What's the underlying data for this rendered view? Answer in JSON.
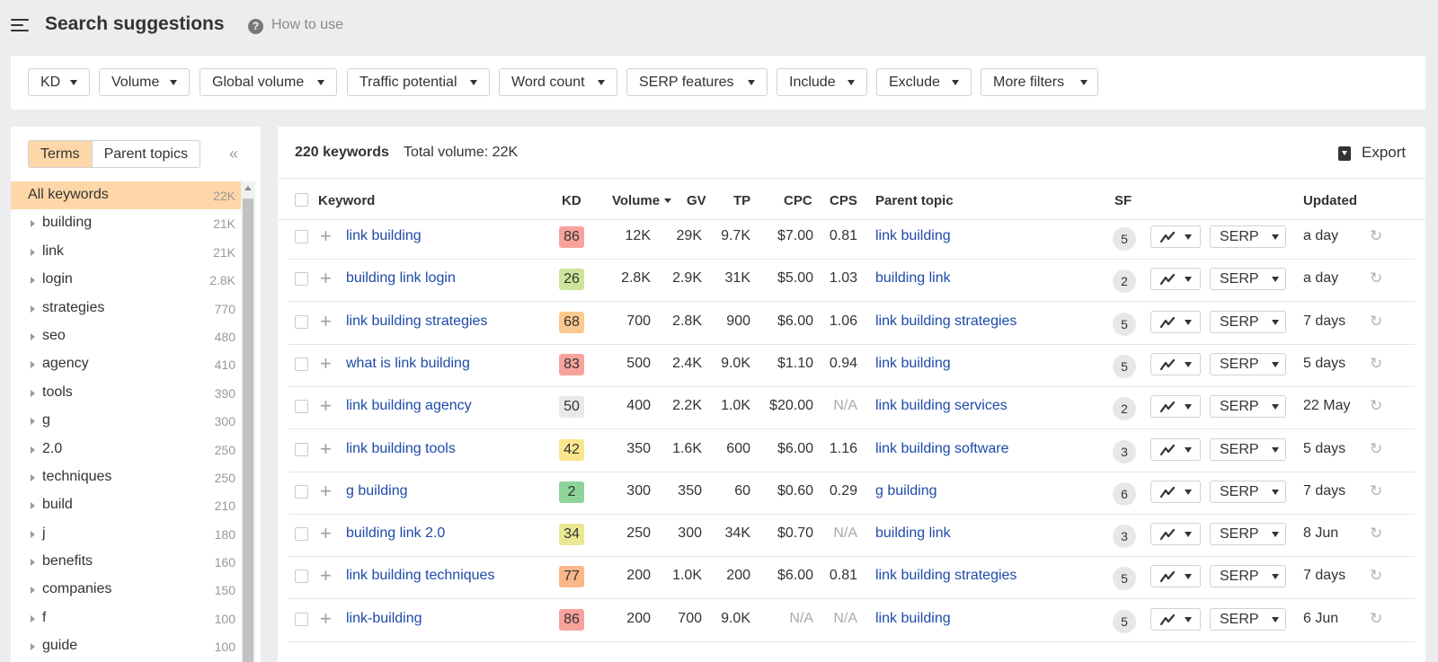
{
  "header": {
    "title": "Search suggestions",
    "help_icon": "?",
    "help_label": "How to use"
  },
  "filters": [
    {
      "label": "KD"
    },
    {
      "label": "Volume"
    },
    {
      "label": "Global volume"
    },
    {
      "label": "Traffic potential"
    },
    {
      "label": "Word count"
    },
    {
      "label": "SERP features"
    },
    {
      "label": "Include"
    },
    {
      "label": "Exclude"
    },
    {
      "label": "More filters"
    }
  ],
  "sidebar": {
    "tabs": [
      "Terms",
      "Parent topics"
    ],
    "active_tab": "Terms",
    "collapse_icon": "«",
    "items": [
      {
        "label": "All keywords",
        "count": "22K"
      },
      {
        "label": "building",
        "count": "21K"
      },
      {
        "label": "link",
        "count": "21K"
      },
      {
        "label": "login",
        "count": "2.8K"
      },
      {
        "label": "strategies",
        "count": "770"
      },
      {
        "label": "seo",
        "count": "480"
      },
      {
        "label": "agency",
        "count": "410"
      },
      {
        "label": "tools",
        "count": "390"
      },
      {
        "label": "g",
        "count": "300"
      },
      {
        "label": "2.0",
        "count": "250"
      },
      {
        "label": "techniques",
        "count": "250"
      },
      {
        "label": "build",
        "count": "210"
      },
      {
        "label": "j",
        "count": "180"
      },
      {
        "label": "benefits",
        "count": "160"
      },
      {
        "label": "companies",
        "count": "150"
      },
      {
        "label": "f",
        "count": "100"
      },
      {
        "label": "guide",
        "count": "100"
      }
    ]
  },
  "main": {
    "keyword_count": "220 keywords",
    "total_volume": "Total volume: 22K",
    "export_label": "Export",
    "columns": {
      "keyword": "Keyword",
      "kd": "KD",
      "volume": "Volume",
      "gv": "GV",
      "tp": "TP",
      "cpc": "CPC",
      "cps": "CPS",
      "parent_topic": "Parent topic",
      "sf": "SF",
      "updated": "Updated"
    },
    "serp_label": "SERP",
    "plus_icon": "+",
    "refresh_icon": "↻",
    "rows": [
      {
        "keyword": "link building",
        "kd": "86",
        "kd_color": "#f7a39c",
        "volume": "12K",
        "gv": "29K",
        "tp": "9.7K",
        "cpc": "$7.00",
        "cps": "0.81",
        "parent_topic": "link building",
        "sf": "5",
        "updated": "a day"
      },
      {
        "keyword": "building link login",
        "kd": "26",
        "kd_color": "#cde49a",
        "volume": "2.8K",
        "gv": "2.9K",
        "tp": "31K",
        "cpc": "$5.00",
        "cps": "1.03",
        "parent_topic": "building link",
        "sf": "2",
        "updated": "a day"
      },
      {
        "keyword": "link building strategies",
        "kd": "68",
        "kd_color": "#fbc88e",
        "volume": "700",
        "gv": "2.8K",
        "tp": "900",
        "cpc": "$6.00",
        "cps": "1.06",
        "parent_topic": "link building strategies",
        "sf": "5",
        "updated": "7 days"
      },
      {
        "keyword": "what is link building",
        "kd": "83",
        "kd_color": "#f7a39c",
        "volume": "500",
        "gv": "2.4K",
        "tp": "9.0K",
        "cpc": "$1.10",
        "cps": "0.94",
        "parent_topic": "link building",
        "sf": "5",
        "updated": "5 days"
      },
      {
        "keyword": "link building agency",
        "kd": "50",
        "kd_color": "#e8e8e8",
        "volume": "400",
        "gv": "2.2K",
        "tp": "1.0K",
        "cpc": "$20.00",
        "cps": "N/A",
        "parent_topic": "link building services",
        "sf": "2",
        "updated": "22 May"
      },
      {
        "keyword": "link building tools",
        "kd": "42",
        "kd_color": "#fbe68e",
        "volume": "350",
        "gv": "1.6K",
        "tp": "600",
        "cpc": "$6.00",
        "cps": "1.16",
        "parent_topic": "link building software",
        "sf": "3",
        "updated": "5 days"
      },
      {
        "keyword": "g building",
        "kd": "2",
        "kd_color": "#8fd39a",
        "volume": "300",
        "gv": "350",
        "tp": "60",
        "cpc": "$0.60",
        "cps": "0.29",
        "parent_topic": "g building",
        "sf": "6",
        "updated": "7 days"
      },
      {
        "keyword": "building link 2.0",
        "kd": "34",
        "kd_color": "#eae792",
        "volume": "250",
        "gv": "300",
        "tp": "34K",
        "cpc": "$0.70",
        "cps": "N/A",
        "parent_topic": "building link",
        "sf": "3",
        "updated": "8 Jun"
      },
      {
        "keyword": "link building techniques",
        "kd": "77",
        "kd_color": "#fbb68a",
        "volume": "200",
        "gv": "1.0K",
        "tp": "200",
        "cpc": "$6.00",
        "cps": "0.81",
        "parent_topic": "link building strategies",
        "sf": "5",
        "updated": "7 days"
      },
      {
        "keyword": "link-building",
        "kd": "86",
        "kd_color": "#f7a39c",
        "volume": "200",
        "gv": "700",
        "tp": "9.0K",
        "cpc": "N/A",
        "cps": "N/A",
        "parent_topic": "link building",
        "sf": "5",
        "updated": "6 Jun"
      }
    ]
  }
}
